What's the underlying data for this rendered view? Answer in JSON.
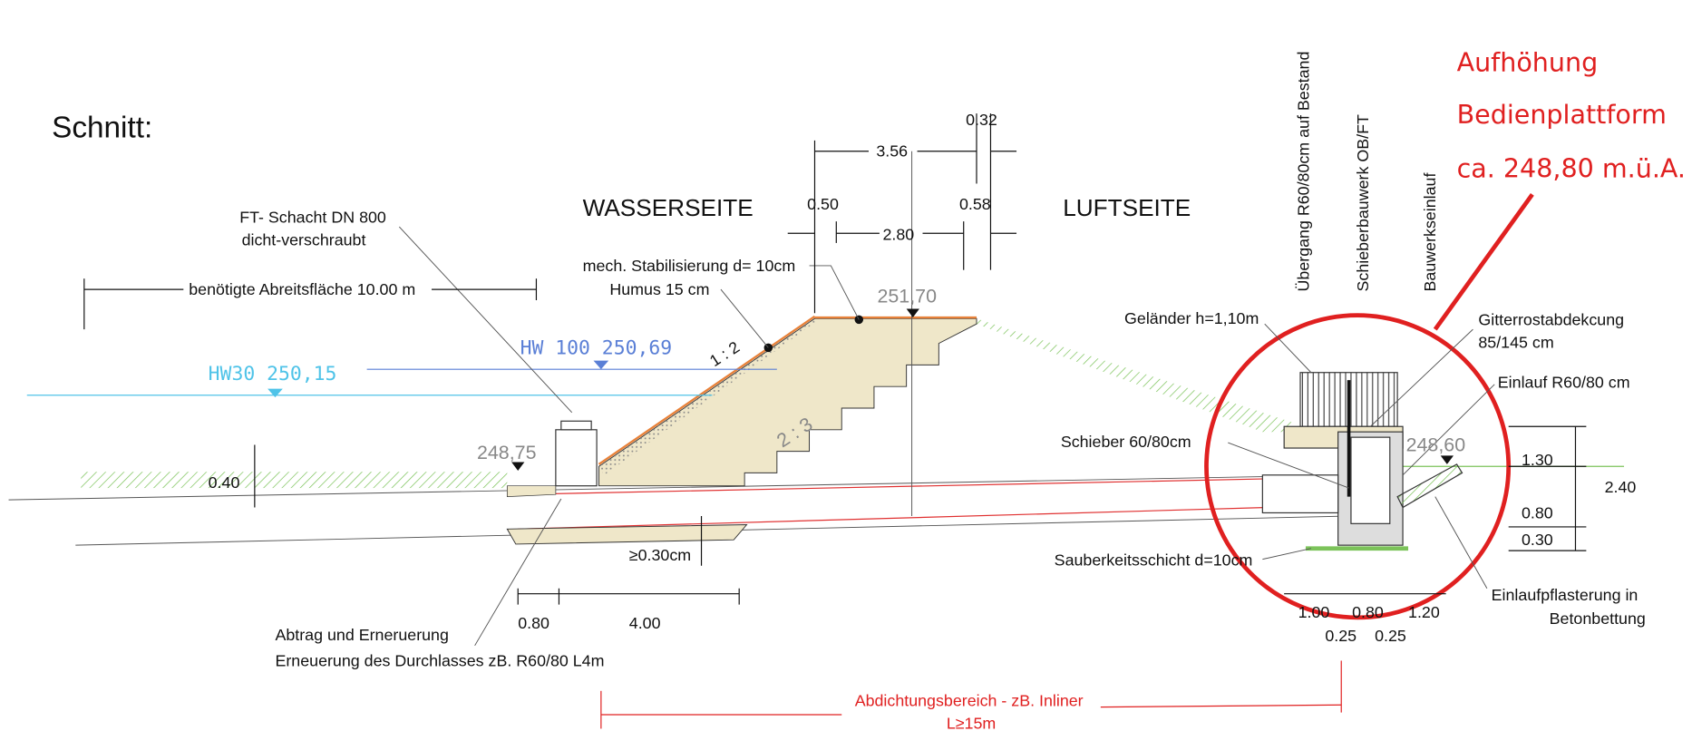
{
  "title": "Schnitt:",
  "sides": {
    "water": "WASSERSEITE",
    "air": "LUFTSEITE"
  },
  "labels": {
    "shaft_1": "FT- Schacht DN 800",
    "shaft_2": "dicht-verschraubt",
    "work_area": "benötigte Abreitsfläche 10.00 m",
    "stabilization": "mech. Stabilisierung d= 10cm",
    "humus": "Humus 15 cm",
    "hw100": "HW 100 250,69",
    "hw30": "HW30 250,15",
    "slope_1": "1 : 2",
    "slope_2": "2 : 3",
    "elev_crest": "251,70",
    "elev_left": "248,75",
    "elev_right": "248,60",
    "removal": "Abtrag und Erneruerung",
    "renewal": "Erneuerung des Durchlasses zB. R60/80 L4m",
    "transition": "Übergang R60/80cm auf Bestand",
    "gate_structure": "Schieberbauwerk OB/FT",
    "inlet_structure": "Bauwerkseinlauf",
    "railing": "Geländer h=1,10m",
    "grating_1": "Gitterrostabdekcung",
    "grating_2": "85/145 cm",
    "inlet": "Einlauf R60/80 cm",
    "gate": "Schieber 60/80cm",
    "clean_layer": "Sauberkeitsschicht d=10cm",
    "paving_1": "Einlaufpflasterung in",
    "paving_2": "Betonbettung",
    "sealing": "Abdichtungsbereich  - zB. Inliner",
    "sealing_length": "L≥15m"
  },
  "dimensions": {
    "d356": "3.56",
    "d032": "0.32",
    "d050": "0.50",
    "d280": "2.80",
    "d058": "0.58",
    "d040": "0.40",
    "d030cm": "≥0.30cm",
    "d080_left": "0.80",
    "d400": "4.00",
    "d130": "1.30",
    "d240": "2.40",
    "d080_right": "0.80",
    "d030": "0.30",
    "d100": "1.00",
    "d080_bottom": "0.80",
    "d120": "1.20",
    "d025_a": "0.25",
    "d025_b": "0.25"
  },
  "callout": {
    "line_1": "Aufhöhung",
    "line_2": "Bedienplattform",
    "line_3": "ca. 248,80 m.ü.A."
  }
}
